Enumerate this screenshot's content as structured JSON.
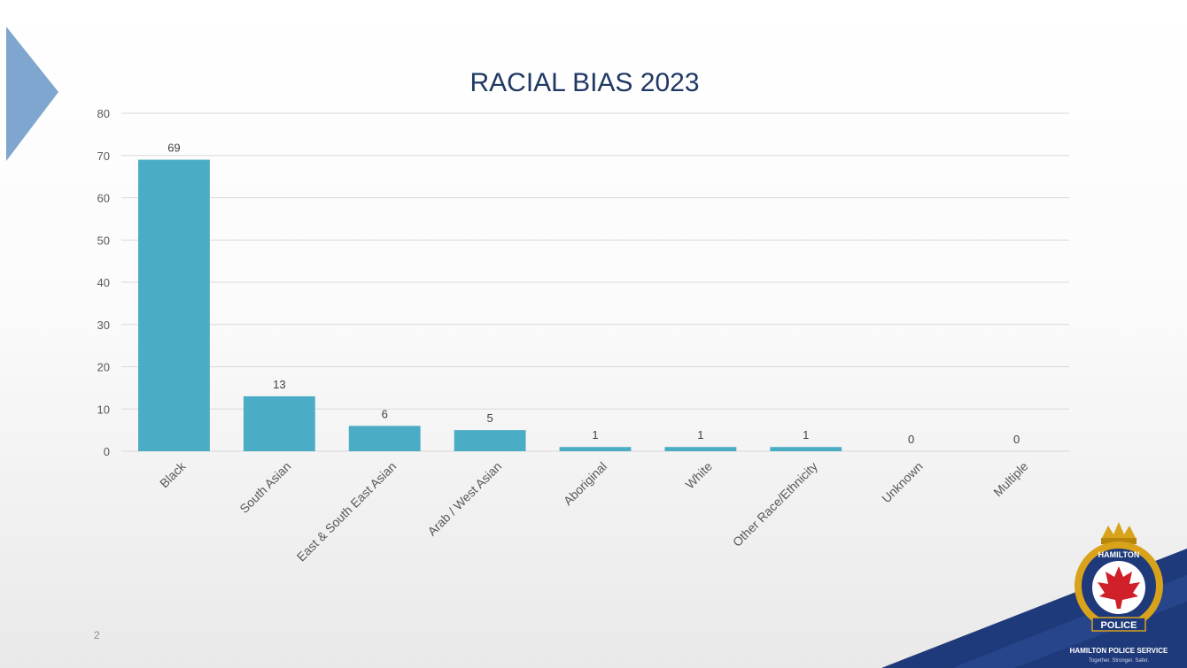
{
  "slide": {
    "number": "2",
    "logo": {
      "badge_text": "HAMILTON",
      "banner_text": "POLICE",
      "org_name": "HAMILTON POLICE SERVICE",
      "tagline": "Together. Stronger. Safer.",
      "colors": {
        "navy": "#1f3a7a",
        "red": "#d0202a",
        "gold": "#d9a21b"
      }
    }
  },
  "chart_data": {
    "type": "bar",
    "title": "RACIAL BIAS 2023",
    "categories": [
      "Black",
      "South Asian",
      "East & South East Asian",
      "Arab / West Asian",
      "Aboriginal",
      "White",
      "Other Race/Ethnicity",
      "Unknown",
      "Multiple"
    ],
    "values": [
      69,
      13,
      6,
      5,
      1,
      1,
      1,
      0,
      0
    ],
    "data_labels": [
      "69",
      "13",
      "6",
      "5",
      "1",
      "1",
      "1",
      "0",
      "0"
    ],
    "ylim": [
      0,
      80
    ],
    "yticks": [
      "0",
      "10",
      "20",
      "30",
      "40",
      "50",
      "60",
      "70",
      "80"
    ],
    "grid": true,
    "legend": "none",
    "bar_color": "#4bacc6"
  }
}
